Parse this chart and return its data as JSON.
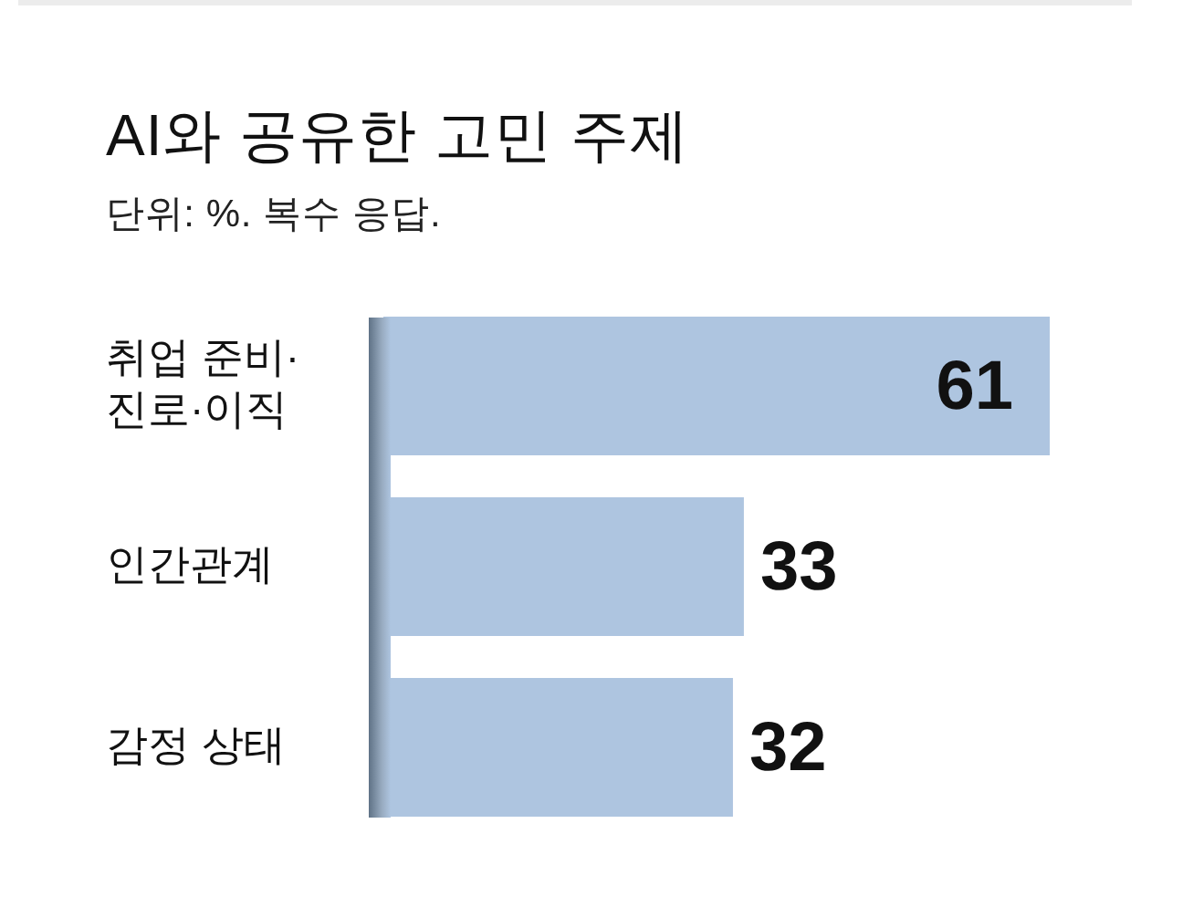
{
  "chart_data": {
    "type": "bar",
    "orientation": "horizontal",
    "title": "AI와 공유한 고민 주제",
    "subtitle": "단위: %. 복수 응답.",
    "categories": [
      "취업 준비·진로·이직",
      "인간관계",
      "감정 상태"
    ],
    "values": [
      61,
      33,
      32
    ],
    "color": "#aec5e0",
    "data_labels": true,
    "tick_labels": "y"
  }
}
